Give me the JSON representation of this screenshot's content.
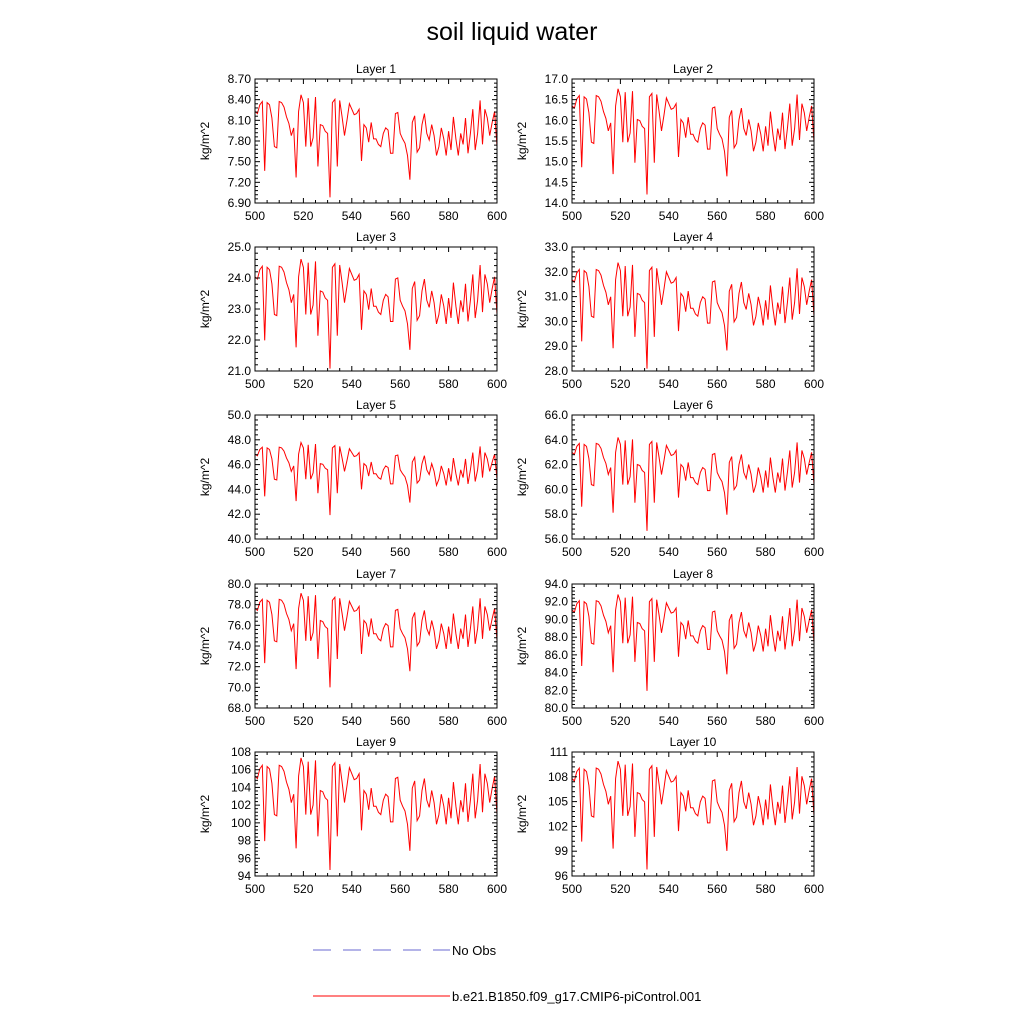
{
  "chart_data": {
    "type": "line",
    "title": "soil liquid water",
    "ylabel": "kg/m^2",
    "xlim": [
      500,
      600
    ],
    "xticks": [
      500,
      520,
      540,
      560,
      580,
      600
    ],
    "colors": {
      "model": "#ff0000",
      "obs": "#6a6ad0",
      "axes": "#000000"
    },
    "legend": {
      "placement": "bottom",
      "entries": [
        {
          "label": "No Obs",
          "style": "dashed",
          "color": "#6a6ad0"
        },
        {
          "label": "b.e21.B1850.f09_g17.CMIP6-piControl.001",
          "style": "solid",
          "color": "#ff0000"
        }
      ]
    },
    "panels": [
      {
        "title": "Layer 1",
        "ylim": [
          6.9,
          8.7
        ],
        "yticks": [
          "6.90",
          "7.20",
          "7.50",
          "7.80",
          "8.10",
          "8.40",
          "8.70"
        ],
        "yvals": [
          6.9,
          7.2,
          7.5,
          7.8,
          8.1,
          8.4,
          8.7
        ],
        "min": 6.95,
        "max": 8.55
      },
      {
        "title": "Layer 2",
        "ylim": [
          14.0,
          17.0
        ],
        "yticks": [
          "14.0",
          "14.5",
          "15.0",
          "15.5",
          "16.0",
          "16.5",
          "17.0"
        ],
        "yvals": [
          14.0,
          14.5,
          15.0,
          15.5,
          16.0,
          16.5,
          17.0
        ],
        "min": 14.15,
        "max": 16.9
      },
      {
        "title": "Layer 3",
        "ylim": [
          21.0,
          25.0
        ],
        "yticks": [
          "21.0",
          "22.0",
          "23.0",
          "24.0",
          "25.0"
        ],
        "yvals": [
          21,
          22,
          23,
          24,
          25
        ],
        "min": 21.0,
        "max": 24.8
      },
      {
        "title": "Layer 4",
        "ylim": [
          28.0,
          33.0
        ],
        "yticks": [
          "28.0",
          "29.0",
          "30.0",
          "31.0",
          "32.0",
          "33.0"
        ],
        "yvals": [
          28,
          29,
          30,
          31,
          32,
          33
        ],
        "min": 28.0,
        "max": 32.6
      },
      {
        "title": "Layer 5",
        "ylim": [
          40.0,
          50.0
        ],
        "yticks": [
          "40.0",
          "42.0",
          "44.0",
          "46.0",
          "48.0",
          "50.0"
        ],
        "yvals": [
          40,
          42,
          44,
          46,
          48,
          50
        ],
        "min": 41.8,
        "max": 48.1
      },
      {
        "title": "Layer 6",
        "ylim": [
          56.0,
          66.0
        ],
        "yticks": [
          "56.0",
          "58.0",
          "60.0",
          "62.0",
          "64.0",
          "66.0"
        ],
        "yvals": [
          56,
          58,
          60,
          62,
          64,
          66
        ],
        "min": 56.5,
        "max": 64.6
      },
      {
        "title": "Layer 7",
        "ylim": [
          68.0,
          80.0
        ],
        "yticks": [
          "68.0",
          "70.0",
          "72.0",
          "74.0",
          "76.0",
          "78.0",
          "80.0"
        ],
        "yvals": [
          68,
          70,
          72,
          74,
          76,
          78,
          80
        ],
        "min": 69.8,
        "max": 79.6
      },
      {
        "title": "Layer 8",
        "ylim": [
          80.0,
          94.0
        ],
        "yticks": [
          "80.0",
          "82.0",
          "84.0",
          "86.0",
          "88.0",
          "90.0",
          "92.0",
          "94.0"
        ],
        "yvals": [
          80,
          82,
          84,
          86,
          88,
          90,
          92,
          94
        ],
        "min": 81.7,
        "max": 93.4
      },
      {
        "title": "Layer 9",
        "ylim": [
          94,
          108
        ],
        "yticks": [
          "94",
          "96",
          "98",
          "100",
          "102",
          "104",
          "106",
          "108"
        ],
        "yvals": [
          94,
          96,
          98,
          100,
          102,
          104,
          106,
          108
        ],
        "min": 94.4,
        "max": 108
      },
      {
        "title": "Layer 10",
        "ylim": [
          96,
          111
        ],
        "yticks": [
          "96",
          "99",
          "102",
          "105",
          "108",
          "111"
        ],
        "yvals": [
          96,
          99,
          102,
          105,
          108,
          111
        ],
        "min": 96.5,
        "max": 110.6
      }
    ],
    "pattern_x": [
      500,
      600
    ],
    "pattern": [
      0.8,
      0.78,
      0.86,
      0.89,
      0.26,
      0.88,
      0.86,
      0.74,
      0.48,
      0.47,
      0.89,
      0.88,
      0.84,
      0.75,
      0.69,
      0.58,
      0.65,
      0.2,
      0.8,
      0.95,
      0.88,
      0.48,
      0.92,
      0.48,
      0.56,
      0.93,
      0.3,
      0.68,
      0.67,
      0.62,
      0.6,
      0.02,
      0.88,
      0.91,
      0.3,
      0.9,
      0.75,
      0.58,
      0.72,
      0.87,
      0.82,
      0.77,
      0.78,
      0.82,
      0.35,
      0.68,
      0.65,
      0.52,
      0.7,
      0.55,
      0.55,
      0.5,
      0.48,
      0.6,
      0.65,
      0.63,
      0.42,
      0.42,
      0.78,
      0.79,
      0.6,
      0.55,
      0.51,
      0.4,
      0.18,
      0.7,
      0.76,
      0.43,
      0.47,
      0.68,
      0.78,
      0.6,
      0.54,
      0.68,
      0.58,
      0.4,
      0.48,
      0.65,
      0.55,
      0.4,
      0.62,
      0.45,
      0.75,
      0.55,
      0.4,
      0.6,
      0.5,
      0.74,
      0.42,
      0.6,
      0.82,
      0.45,
      0.6,
      0.9,
      0.5,
      0.82,
      0.74,
      0.58,
      0.7,
      0.8,
      0.48
    ]
  }
}
